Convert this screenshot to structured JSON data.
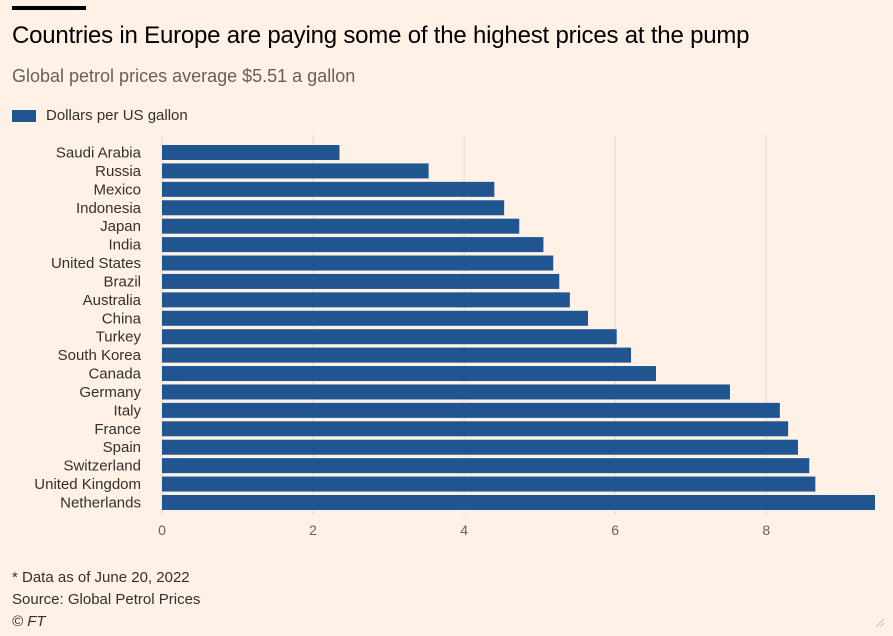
{
  "title": "Countries in Europe are paying some of the highest prices at the pump",
  "subtitle": "Global petrol prices average $5.51 a gallon",
  "colors": {
    "bar": "#1f5591",
    "grid": "#e6d9ce",
    "background": "#fff1e5"
  },
  "chart_data": {
    "type": "bar",
    "orientation": "horizontal",
    "legend": "Dollars per US gallon",
    "legend_position": "top-left",
    "categories": [
      "Saudi Arabia",
      "Russia",
      "Mexico",
      "Indonesia",
      "Japan",
      "India",
      "United States",
      "Brazil",
      "Australia",
      "China",
      "Turkey",
      "South Korea",
      "Canada",
      "Germany",
      "Italy",
      "France",
      "Spain",
      "Switzerland",
      "United Kingdom",
      "Netherlands"
    ],
    "values": [
      2.35,
      3.53,
      4.4,
      4.53,
      4.73,
      5.05,
      5.18,
      5.26,
      5.4,
      5.64,
      6.02,
      6.21,
      6.54,
      7.52,
      8.18,
      8.29,
      8.42,
      8.57,
      8.65,
      9.44
    ],
    "xlim": [
      0,
      9.44
    ],
    "xticks": [
      0,
      2,
      4,
      6,
      8
    ],
    "xlabel": "",
    "ylabel": "",
    "grid": true
  },
  "footnotes": {
    "note": "* Data as of June 20, 2022",
    "source": "Source: Global Petrol Prices",
    "credit": "© FT"
  }
}
